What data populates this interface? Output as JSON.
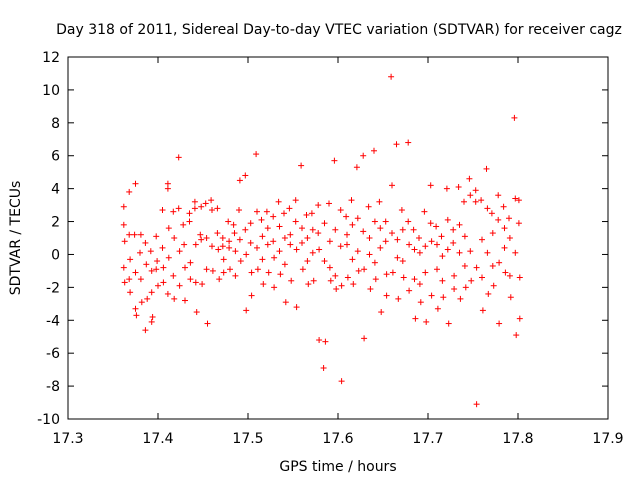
{
  "chart_data": {
    "type": "scatter",
    "title": "Day 318 of 2011, Sidereal Day-to-day VTEC variation (SDTVAR) for receiver cagz",
    "xlabel": "GPS time / hours",
    "ylabel": "SDTVAR / TECUs",
    "xlim": [
      17.3,
      17.9
    ],
    "ylim": [
      -10,
      12
    ],
    "xticks": [
      "17.3",
      "17.4",
      "17.5",
      "17.6",
      "17.7",
      "17.8",
      "17.9"
    ],
    "yticks": [
      "12",
      "10",
      "8",
      "6",
      "4",
      "2",
      "0",
      "-2",
      "-4",
      "-6",
      "-8",
      "-10"
    ],
    "marker": "+",
    "color": "#ff0000",
    "series": [
      {
        "name": "SDTVAR",
        "points": [
          [
            17.362,
            2.9
          ],
          [
            17.362,
            1.8
          ],
          [
            17.363,
            0.8
          ],
          [
            17.362,
            -0.8
          ],
          [
            17.363,
            -1.7
          ],
          [
            17.368,
            3.8
          ],
          [
            17.368,
            1.2
          ],
          [
            17.369,
            -0.3
          ],
          [
            17.368,
            -1.5
          ],
          [
            17.369,
            -2.3
          ],
          [
            17.375,
            4.3
          ],
          [
            17.374,
            1.2
          ],
          [
            17.375,
            -1.1
          ],
          [
            17.375,
            -3.3
          ],
          [
            17.376,
            -3.7
          ],
          [
            17.381,
            1.2
          ],
          [
            17.38,
            0.1
          ],
          [
            17.381,
            -1.5
          ],
          [
            17.382,
            -2.9
          ],
          [
            17.386,
            0.7
          ],
          [
            17.387,
            -0.6
          ],
          [
            17.386,
            -4.6
          ],
          [
            17.388,
            -2.7
          ],
          [
            17.392,
            0.2
          ],
          [
            17.393,
            -1.0
          ],
          [
            17.393,
            -4.1
          ],
          [
            17.394,
            -3.8
          ],
          [
            17.393,
            -2.3
          ],
          [
            17.398,
            1.1
          ],
          [
            17.399,
            -0.4
          ],
          [
            17.4,
            -1.9
          ],
          [
            17.398,
            -0.9
          ],
          [
            17.405,
            2.7
          ],
          [
            17.405,
            0.4
          ],
          [
            17.406,
            -0.8
          ],
          [
            17.406,
            -1.7
          ],
          [
            17.411,
            4.3
          ],
          [
            17.411,
            4.0
          ],
          [
            17.412,
            1.6
          ],
          [
            17.412,
            -0.2
          ],
          [
            17.411,
            -2.4
          ],
          [
            17.417,
            2.6
          ],
          [
            17.418,
            1.0
          ],
          [
            17.417,
            -1.3
          ],
          [
            17.418,
            -2.7
          ],
          [
            17.423,
            5.9
          ],
          [
            17.423,
            2.8
          ],
          [
            17.424,
            0.2
          ],
          [
            17.424,
            -1.9
          ],
          [
            17.428,
            1.8
          ],
          [
            17.429,
            0.6
          ],
          [
            17.43,
            -0.8
          ],
          [
            17.43,
            -2.8
          ],
          [
            17.435,
            2.5
          ],
          [
            17.435,
            2.0
          ],
          [
            17.436,
            -0.5
          ],
          [
            17.436,
            -1.5
          ],
          [
            17.441,
            3.2
          ],
          [
            17.441,
            2.8
          ],
          [
            17.442,
            0.6
          ],
          [
            17.442,
            -1.7
          ],
          [
            17.443,
            -3.5
          ],
          [
            17.447,
            1.2
          ],
          [
            17.448,
            0.9
          ],
          [
            17.448,
            2.9
          ],
          [
            17.449,
            -1.8
          ],
          [
            17.453,
            3.1
          ],
          [
            17.454,
            1.0
          ],
          [
            17.454,
            -0.9
          ],
          [
            17.455,
            -4.2
          ],
          [
            17.459,
            3.3
          ],
          [
            17.46,
            2.7
          ],
          [
            17.46,
            0.5
          ],
          [
            17.461,
            -1.0
          ],
          [
            17.466,
            2.8
          ],
          [
            17.466,
            1.3
          ],
          [
            17.467,
            0.3
          ],
          [
            17.468,
            -1.5
          ],
          [
            17.472,
            1.0
          ],
          [
            17.472,
            0.5
          ],
          [
            17.473,
            -0.3
          ],
          [
            17.473,
            -1.1
          ],
          [
            17.478,
            2.0
          ],
          [
            17.479,
            0.8
          ],
          [
            17.479,
            0.4
          ],
          [
            17.48,
            -0.9
          ],
          [
            17.484,
            1.8
          ],
          [
            17.485,
            1.3
          ],
          [
            17.486,
            0.2
          ],
          [
            17.486,
            -1.3
          ],
          [
            17.49,
            2.7
          ],
          [
            17.491,
            4.5
          ],
          [
            17.491,
            0.9
          ],
          [
            17.492,
            -0.4
          ],
          [
            17.497,
            4.8
          ],
          [
            17.497,
            1.5
          ],
          [
            17.498,
            0.0
          ],
          [
            17.498,
            -3.4
          ],
          [
            17.503,
            1.9
          ],
          [
            17.503,
            0.7
          ],
          [
            17.504,
            -1.1
          ],
          [
            17.504,
            -2.5
          ],
          [
            17.509,
            6.1
          ],
          [
            17.51,
            2.6
          ],
          [
            17.51,
            0.4
          ],
          [
            17.511,
            -0.9
          ],
          [
            17.515,
            2.1
          ],
          [
            17.516,
            1.1
          ],
          [
            17.516,
            -0.3
          ],
          [
            17.517,
            -1.8
          ],
          [
            17.521,
            2.6
          ],
          [
            17.522,
            1.6
          ],
          [
            17.522,
            0.6
          ],
          [
            17.523,
            -1.1
          ],
          [
            17.528,
            2.3
          ],
          [
            17.528,
            0.8
          ],
          [
            17.529,
            -0.2
          ],
          [
            17.529,
            -2.0
          ],
          [
            17.534,
            3.2
          ],
          [
            17.535,
            1.7
          ],
          [
            17.535,
            0.2
          ],
          [
            17.536,
            -1.2
          ],
          [
            17.54,
            2.5
          ],
          [
            17.541,
            1.0
          ],
          [
            17.541,
            -0.6
          ],
          [
            17.542,
            -2.9
          ],
          [
            17.546,
            2.8
          ],
          [
            17.547,
            1.2
          ],
          [
            17.547,
            0.6
          ],
          [
            17.548,
            -1.6
          ],
          [
            17.553,
            3.3
          ],
          [
            17.553,
            2.0
          ],
          [
            17.554,
            0.3
          ],
          [
            17.554,
            -3.2
          ],
          [
            17.559,
            5.4
          ],
          [
            17.56,
            1.6
          ],
          [
            17.56,
            0.7
          ],
          [
            17.561,
            -0.9
          ],
          [
            17.565,
            2.4
          ],
          [
            17.566,
            1.0
          ],
          [
            17.566,
            -0.4
          ],
          [
            17.567,
            -1.8
          ],
          [
            17.571,
            2.5
          ],
          [
            17.572,
            1.5
          ],
          [
            17.572,
            0.1
          ],
          [
            17.573,
            -1.6
          ],
          [
            17.578,
            3.0
          ],
          [
            17.578,
            1.3
          ],
          [
            17.579,
            0.3
          ],
          [
            17.579,
            -5.2
          ],
          [
            17.584,
            -6.9
          ],
          [
            17.585,
            1.9
          ],
          [
            17.585,
            -0.4
          ],
          [
            17.586,
            -5.3
          ],
          [
            17.59,
            3.1
          ],
          [
            17.591,
            0.8
          ],
          [
            17.591,
            -0.8
          ],
          [
            17.592,
            -1.6
          ],
          [
            17.596,
            5.7
          ],
          [
            17.597,
            1.5
          ],
          [
            17.597,
            -1.3
          ],
          [
            17.598,
            -2.1
          ],
          [
            17.603,
            2.7
          ],
          [
            17.603,
            0.5
          ],
          [
            17.604,
            -1.9
          ],
          [
            17.604,
            -7.7
          ],
          [
            17.609,
            2.3
          ],
          [
            17.61,
            1.2
          ],
          [
            17.61,
            0.6
          ],
          [
            17.611,
            -1.4
          ],
          [
            17.615,
            3.3
          ],
          [
            17.616,
            1.8
          ],
          [
            17.616,
            -0.3
          ],
          [
            17.617,
            -1.8
          ],
          [
            17.621,
            5.3
          ],
          [
            17.622,
            2.2
          ],
          [
            17.622,
            0.2
          ],
          [
            17.623,
            -1.0
          ],
          [
            17.628,
            6.0
          ],
          [
            17.628,
            1.4
          ],
          [
            17.629,
            -0.9
          ],
          [
            17.629,
            -5.1
          ],
          [
            17.634,
            2.9
          ],
          [
            17.635,
            1.0
          ],
          [
            17.635,
            0.0
          ],
          [
            17.636,
            -2.1
          ],
          [
            17.64,
            6.3
          ],
          [
            17.641,
            2.0
          ],
          [
            17.641,
            -0.5
          ],
          [
            17.642,
            -1.5
          ],
          [
            17.646,
            3.2
          ],
          [
            17.647,
            1.6
          ],
          [
            17.647,
            0.4
          ],
          [
            17.648,
            -3.5
          ],
          [
            17.653,
            2.0
          ],
          [
            17.653,
            0.8
          ],
          [
            17.654,
            -1.2
          ],
          [
            17.654,
            -2.5
          ],
          [
            17.659,
            10.8
          ],
          [
            17.66,
            4.2
          ],
          [
            17.66,
            1.3
          ],
          [
            17.661,
            -1.1
          ],
          [
            17.665,
            6.7
          ],
          [
            17.666,
            0.9
          ],
          [
            17.666,
            -0.2
          ],
          [
            17.667,
            -2.7
          ],
          [
            17.671,
            2.7
          ],
          [
            17.672,
            1.5
          ],
          [
            17.672,
            -0.4
          ],
          [
            17.673,
            -1.4
          ],
          [
            17.678,
            6.8
          ],
          [
            17.678,
            2.0
          ],
          [
            17.679,
            0.6
          ],
          [
            17.679,
            -2.2
          ],
          [
            17.684,
            1.5
          ],
          [
            17.685,
            0.3
          ],
          [
            17.685,
            -1.5
          ],
          [
            17.686,
            -3.9
          ],
          [
            17.69,
            1.0
          ],
          [
            17.691,
            0.1
          ],
          [
            17.691,
            -1.8
          ],
          [
            17.692,
            -2.9
          ],
          [
            17.696,
            2.6
          ],
          [
            17.697,
            0.5
          ],
          [
            17.697,
            -1.1
          ],
          [
            17.698,
            -4.1
          ],
          [
            17.703,
            4.2
          ],
          [
            17.703,
            1.9
          ],
          [
            17.704,
            0.8
          ],
          [
            17.704,
            -2.5
          ],
          [
            17.709,
            1.7
          ],
          [
            17.71,
            0.6
          ],
          [
            17.71,
            -0.9
          ],
          [
            17.711,
            -3.3
          ],
          [
            17.715,
            1.1
          ],
          [
            17.716,
            -0.1
          ],
          [
            17.716,
            -1.6
          ],
          [
            17.717,
            -2.6
          ],
          [
            17.721,
            4.0
          ],
          [
            17.722,
            2.1
          ],
          [
            17.722,
            0.3
          ],
          [
            17.723,
            -4.2
          ],
          [
            17.728,
            1.5
          ],
          [
            17.728,
            0.7
          ],
          [
            17.729,
            -1.3
          ],
          [
            17.729,
            -2.1
          ],
          [
            17.734,
            4.1
          ],
          [
            17.735,
            1.8
          ],
          [
            17.735,
            0.1
          ],
          [
            17.736,
            -2.7
          ],
          [
            17.74,
            3.2
          ],
          [
            17.741,
            1.1
          ],
          [
            17.741,
            -0.7
          ],
          [
            17.742,
            -2.0
          ],
          [
            17.746,
            4.6
          ],
          [
            17.747,
            3.6
          ],
          [
            17.747,
            0.2
          ],
          [
            17.748,
            -1.6
          ],
          [
            17.753,
            3.9
          ],
          [
            17.753,
            3.2
          ],
          [
            17.754,
            -0.8
          ],
          [
            17.754,
            -9.1
          ],
          [
            17.759,
            3.3
          ],
          [
            17.76,
            0.9
          ],
          [
            17.76,
            -1.4
          ],
          [
            17.761,
            -3.4
          ],
          [
            17.765,
            5.2
          ],
          [
            17.766,
            2.8
          ],
          [
            17.766,
            0.1
          ],
          [
            17.767,
            -2.4
          ],
          [
            17.771,
            2.5
          ],
          [
            17.772,
            1.3
          ],
          [
            17.772,
            -0.7
          ],
          [
            17.773,
            -1.9
          ],
          [
            17.778,
            3.6
          ],
          [
            17.778,
            2.1
          ],
          [
            17.779,
            -0.5
          ],
          [
            17.779,
            -4.2
          ],
          [
            17.784,
            2.9
          ],
          [
            17.785,
            1.6
          ],
          [
            17.785,
            0.4
          ],
          [
            17.786,
            -1.1
          ],
          [
            17.79,
            2.2
          ],
          [
            17.791,
            1.0
          ],
          [
            17.791,
            -1.3
          ],
          [
            17.792,
            -2.6
          ],
          [
            17.796,
            8.3
          ],
          [
            17.797,
            3.4
          ],
          [
            17.797,
            0.1
          ],
          [
            17.798,
            -4.9
          ],
          [
            17.801,
            3.3
          ],
          [
            17.801,
            1.9
          ],
          [
            17.802,
            -1.4
          ],
          [
            17.802,
            -3.9
          ]
        ]
      }
    ]
  }
}
